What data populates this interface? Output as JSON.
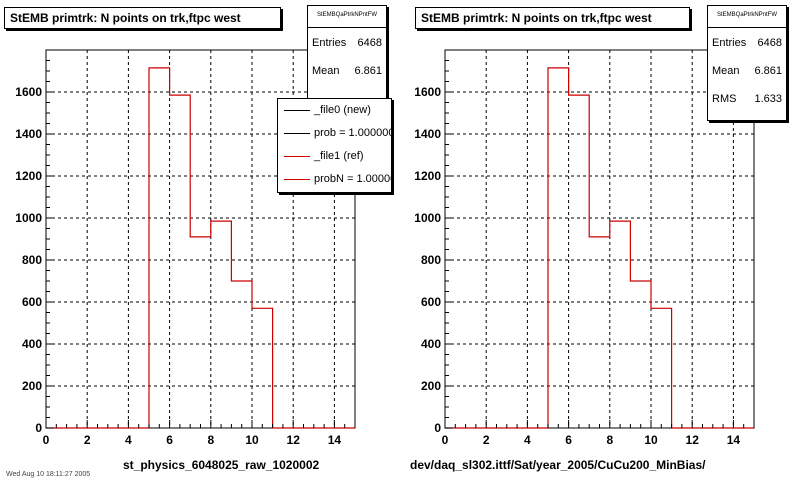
{
  "chart_data": [
    {
      "type": "bar",
      "title": "StEMB primtrk: N points on trk,ftpc west",
      "stats": {
        "name": "StEMBQaPtrkNPntFW",
        "entries_label": "Entries",
        "entries": "6468",
        "mean_label": "Mean",
        "mean": "6.861"
      },
      "legend": [
        {
          "label": "_file0 (new)",
          "color": "#000000"
        },
        {
          "label": "prob = 1.000000",
          "color": "#000000"
        },
        {
          "label": "_file1 (ref)",
          "color": "#cc0000"
        },
        {
          "label": "probN = 1.000000",
          "color": "#cc0000"
        }
      ],
      "xlabel": "st_physics_6048025_raw_1020002",
      "xlim": [
        0,
        15
      ],
      "ylim": [
        0,
        1800
      ],
      "x_ticks": [
        0,
        2,
        4,
        6,
        8,
        10,
        12,
        14
      ],
      "y_ticks": [
        0,
        200,
        400,
        600,
        800,
        1000,
        1200,
        1400,
        1600
      ],
      "bin_edges": [
        0,
        1,
        2,
        3,
        4,
        5,
        6,
        7,
        8,
        9,
        10,
        11,
        12,
        13,
        14,
        15
      ],
      "values": [
        0,
        0,
        0,
        0,
        0,
        1715,
        1585,
        910,
        985,
        700,
        570,
        0,
        0,
        0,
        0
      ],
      "series_color": "#cc0000",
      "grid": true
    },
    {
      "type": "bar",
      "title": "StEMB primtrk: N points on trk,ftpc west",
      "stats": {
        "name": "StEMBQaPtrkNPntFW",
        "entries_label": "Entries",
        "entries": "6468",
        "mean_label": "Mean",
        "mean": "6.861",
        "rms_label": "RMS",
        "rms": "1.633"
      },
      "xlabel": "dev/daq_sl302.ittf/Sat/year_2005/CuCu200_MinBias/",
      "xlim": [
        0,
        15
      ],
      "ylim": [
        0,
        1800
      ],
      "x_ticks": [
        0,
        2,
        4,
        6,
        8,
        10,
        12,
        14
      ],
      "y_ticks": [
        0,
        200,
        400,
        600,
        800,
        1000,
        1200,
        1400,
        1600
      ],
      "bin_edges": [
        0,
        1,
        2,
        3,
        4,
        5,
        6,
        7,
        8,
        9,
        10,
        11,
        12,
        13,
        14,
        15
      ],
      "values": [
        0,
        0,
        0,
        0,
        0,
        1715,
        1585,
        910,
        985,
        700,
        570,
        0,
        0,
        0,
        0
      ],
      "series_color": "#cc0000",
      "grid": true
    }
  ],
  "footer_text": "Wed Aug 10 18:11:27 2005"
}
